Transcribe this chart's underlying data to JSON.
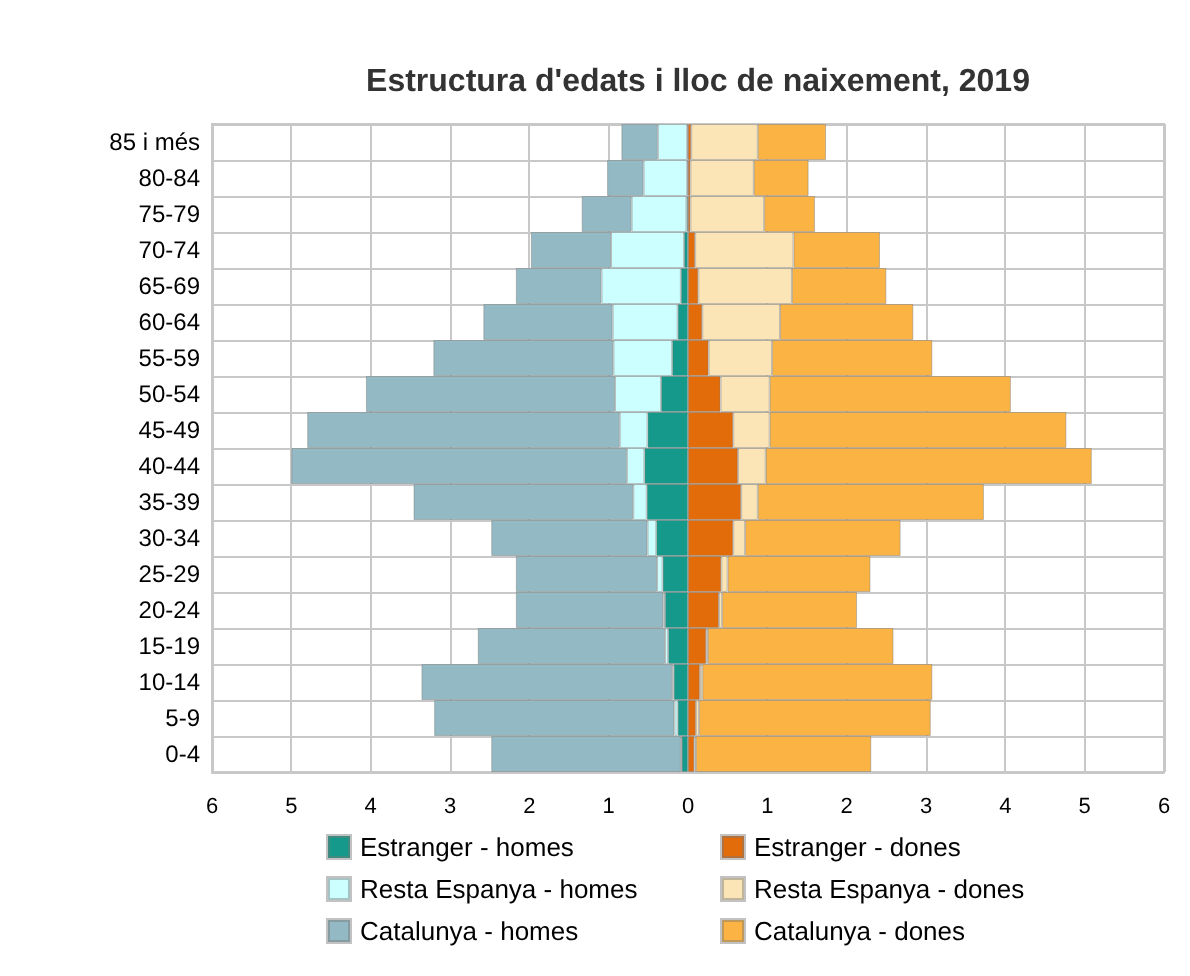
{
  "chart_data": {
    "type": "bar",
    "title": "Estructura d'edats i lloc de naixement, 2019",
    "orientation": "horizontal",
    "stacked": true,
    "grid": true,
    "legend": "bottom",
    "categories": [
      "85 i més",
      "80-84",
      "75-79",
      "70-74",
      "65-69",
      "60-64",
      "55-59",
      "50-54",
      "45-49",
      "40-44",
      "35-39",
      "30-34",
      "25-29",
      "20-24",
      "15-19",
      "10-14",
      "5-9",
      "0-4"
    ],
    "xlim": [
      -6,
      6
    ],
    "xticks": [
      {
        "value": -6,
        "label": "6"
      },
      {
        "value": -5,
        "label": "5"
      },
      {
        "value": -4,
        "label": "4"
      },
      {
        "value": -3,
        "label": "3"
      },
      {
        "value": -2,
        "label": "2"
      },
      {
        "value": -1,
        "label": "1"
      },
      0,
      1,
      2,
      3,
      4,
      5,
      6
    ],
    "series": [
      {
        "name": "Estranger - homes",
        "color": "#14998a",
        "values": [
          -0.01,
          -0.01,
          -0.02,
          -0.05,
          -0.09,
          -0.13,
          -0.2,
          -0.34,
          -0.51,
          -0.55,
          -0.52,
          -0.4,
          -0.32,
          -0.29,
          -0.25,
          -0.18,
          -0.13,
          -0.08
        ]
      },
      {
        "name": "Resta Espanya - homes",
        "color": "#ccffff",
        "values": [
          -0.37,
          -0.55,
          -0.69,
          -0.92,
          -1.0,
          -0.82,
          -0.74,
          -0.58,
          -0.35,
          -0.22,
          -0.17,
          -0.11,
          -0.07,
          -0.02,
          -0.04,
          -0.02,
          -0.04,
          -0.01
        ]
      },
      {
        "name": "Catalunya - homes",
        "color": "#93bac4",
        "values": [
          -0.46,
          -0.46,
          -0.63,
          -1.01,
          -1.08,
          -1.63,
          -2.27,
          -3.14,
          -3.94,
          -4.23,
          -2.77,
          -1.97,
          -1.78,
          -1.86,
          -2.36,
          -3.16,
          -3.03,
          -2.39
        ]
      },
      {
        "name": "Estranger - dones",
        "color": "#e36c0a",
        "values": [
          0.04,
          0.03,
          0.03,
          0.09,
          0.13,
          0.18,
          0.26,
          0.41,
          0.57,
          0.63,
          0.67,
          0.57,
          0.42,
          0.39,
          0.23,
          0.15,
          0.1,
          0.08
        ]
      },
      {
        "name": "Resta Espanya - dones",
        "color": "#fbe5b6",
        "values": [
          0.84,
          0.8,
          0.93,
          1.24,
          1.18,
          0.98,
          0.8,
          0.62,
          0.46,
          0.35,
          0.21,
          0.15,
          0.08,
          0.04,
          0.02,
          0.03,
          0.04,
          0.02
        ]
      },
      {
        "name": "Catalunya - dones",
        "color": "#fbb443",
        "values": [
          0.86,
          0.69,
          0.64,
          1.09,
          1.19,
          1.68,
          2.02,
          3.04,
          3.74,
          4.11,
          2.85,
          1.96,
          1.8,
          1.7,
          2.34,
          2.9,
          2.92,
          2.21
        ]
      }
    ]
  }
}
